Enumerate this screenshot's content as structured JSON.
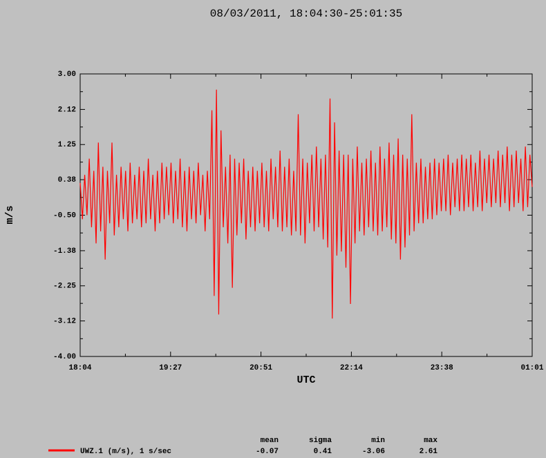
{
  "chart_data": {
    "type": "line",
    "title": "08/03/2011, 18:04:30-25:01:35",
    "xlabel": "UTC",
    "ylabel": "m/s",
    "xticks": [
      "18:04",
      "19:27",
      "20:51",
      "22:14",
      "23:38",
      "01:01"
    ],
    "ylim": [
      -4,
      3
    ],
    "yticks": [
      {
        "value": 3,
        "label": "3.00"
      },
      2.12,
      1.25,
      0.38,
      {
        "value": -0.5,
        "label": "-0.50"
      },
      -1.38,
      -2.25,
      -3.12,
      {
        "value": -4,
        "label": "-4.00"
      }
    ],
    "series": [
      {
        "name": "UWZ.1 (m/s), 1 s/sec",
        "color": "#ff0000",
        "values": [
          0.3,
          -0.6,
          0.5,
          -0.5,
          0.9,
          -0.8,
          0.6,
          -1.2,
          1.3,
          -0.9,
          0.7,
          -1.6,
          0.6,
          -0.7,
          1.3,
          -1.0,
          0.5,
          -0.8,
          0.7,
          -0.6,
          0.6,
          -0.9,
          0.8,
          -0.7,
          0.5,
          -0.6,
          0.7,
          -0.8,
          0.6,
          -0.7,
          0.9,
          -0.6,
          0.5,
          -0.9,
          0.6,
          -0.7,
          0.8,
          -0.6,
          0.7,
          -0.5,
          0.8,
          -0.7,
          0.6,
          -0.6,
          0.9,
          -0.8,
          0.6,
          -0.9,
          0.7,
          -0.6,
          0.6,
          -0.7,
          0.8,
          -0.5,
          0.5,
          -0.9,
          0.6,
          -0.6,
          2.1,
          -2.5,
          2.61,
          -2.96,
          1.6,
          -0.8,
          0.7,
          -1.2,
          1.0,
          -2.3,
          0.9,
          -1.0,
          0.8,
          -0.7,
          0.9,
          -1.1,
          0.6,
          -0.8,
          0.7,
          -0.9,
          0.6,
          -0.7,
          0.8,
          -0.8,
          0.6,
          -0.9,
          0.9,
          -0.6,
          0.7,
          -0.8,
          1.1,
          -0.9,
          0.7,
          -0.8,
          0.9,
          -1.0,
          0.6,
          -0.9,
          2.0,
          -1.0,
          0.9,
          -1.2,
          0.8,
          -0.7,
          1.0,
          -0.9,
          1.2,
          -0.8,
          0.9,
          -1.1,
          1.0,
          -1.3,
          2.39,
          -3.06,
          1.8,
          -1.5,
          1.1,
          -1.4,
          1.0,
          -1.8,
          1.0,
          -2.7,
          0.9,
          -1.2,
          1.2,
          -0.9,
          0.8,
          -1.0,
          0.9,
          -0.8,
          1.1,
          -0.9,
          0.8,
          -1.0,
          1.2,
          -0.9,
          0.9,
          -0.8,
          1.3,
          -1.1,
          1.0,
          -1.2,
          1.4,
          -1.6,
          1.0,
          -1.3,
          0.9,
          -1.0,
          2.0,
          -0.9,
          0.8,
          -0.7,
          0.9,
          -0.7,
          0.7,
          -0.6,
          0.8,
          -0.6,
          0.9,
          -0.5,
          0.8,
          -0.4,
          0.9,
          -0.4,
          1.0,
          -0.5,
          0.8,
          -0.3,
          0.9,
          -0.4,
          1.0,
          -0.4,
          0.9,
          -0.3,
          1.0,
          -0.4,
          0.8,
          -0.3,
          1.1,
          -0.4,
          0.9,
          -0.2,
          1.0,
          -0.3,
          0.9,
          -0.2,
          1.1,
          -0.3,
          1.0,
          -0.2,
          1.2,
          -0.4,
          1.0,
          -0.3,
          1.1,
          -0.2,
          0.9,
          -0.4,
          1.2,
          -0.3,
          1.0,
          0.2
        ]
      }
    ],
    "statistics": {
      "headers": [
        "mean",
        "sigma",
        "min",
        "max"
      ],
      "values": [
        -0.07,
        0.41,
        -3.06,
        2.61
      ]
    }
  }
}
